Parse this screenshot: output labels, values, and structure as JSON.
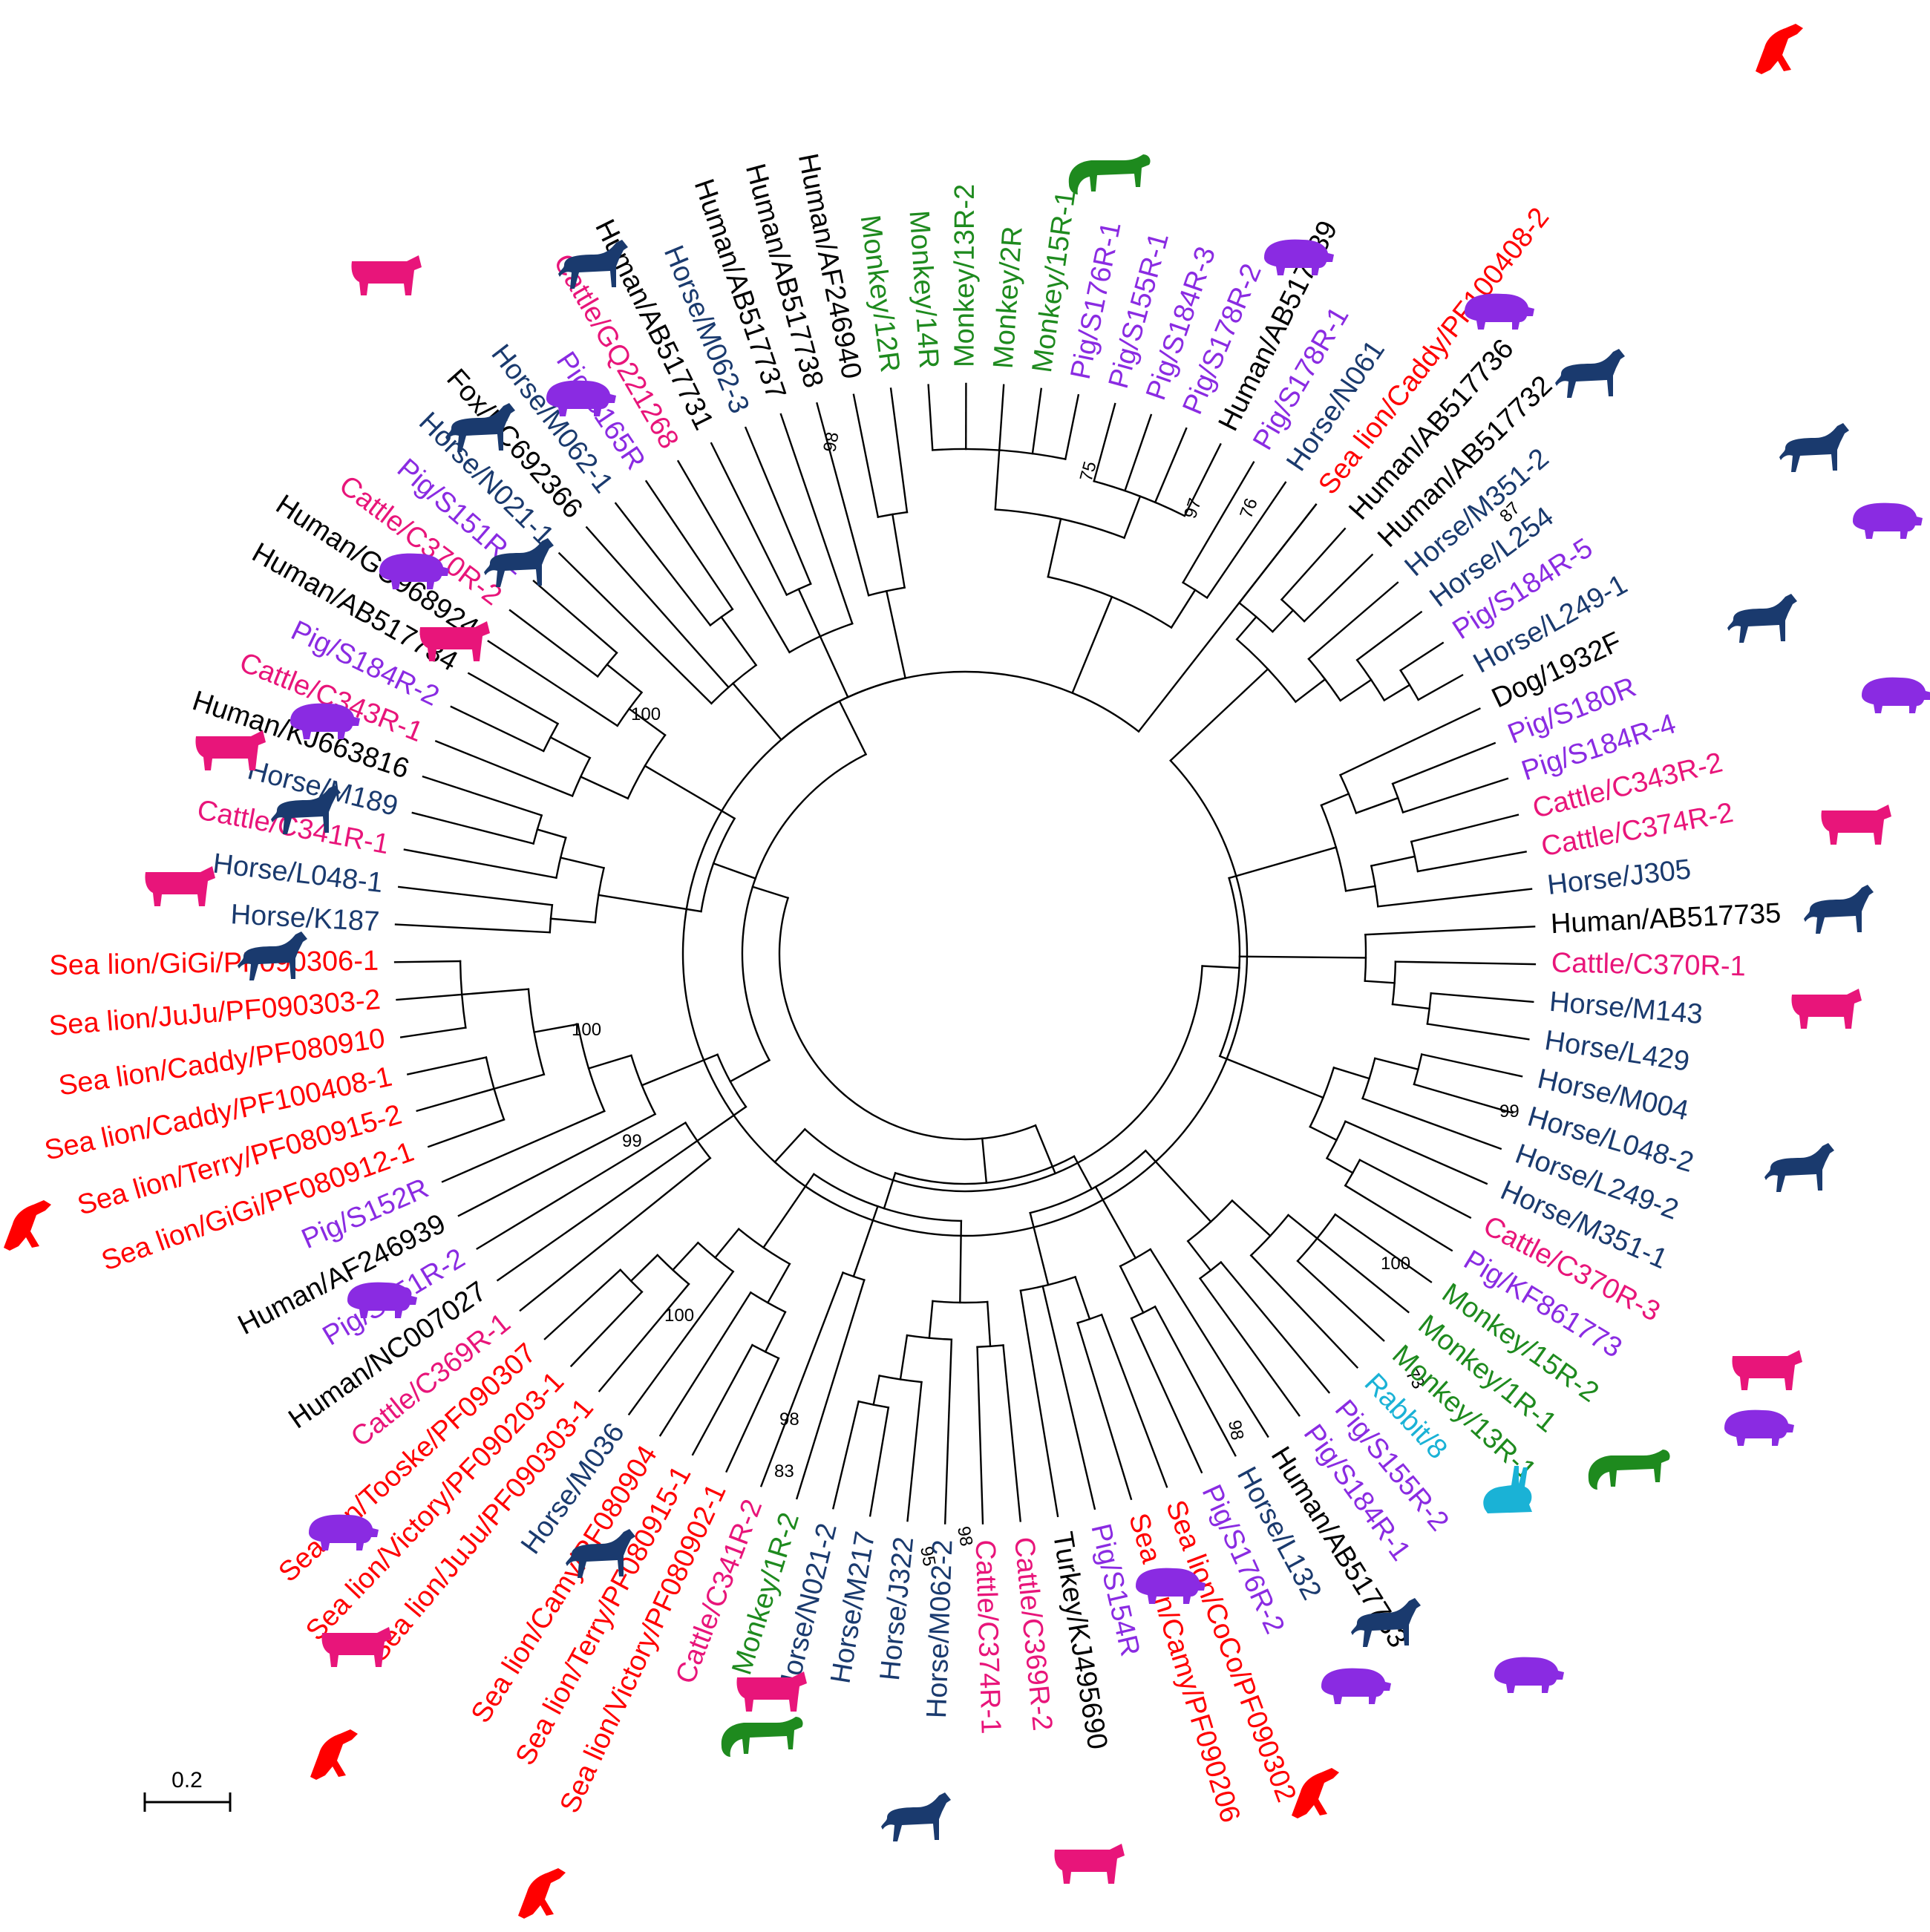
{
  "palette": {
    "Human": "#000000",
    "Fox": "#000000",
    "Dog": "#000000",
    "Turkey": "#000000",
    "Horse": "#1a3a6e",
    "Pig": "#8a2be2",
    "Cattle": "#e8157a",
    "Monkey": "#1e8a1e",
    "Sea lion": "#ff0000",
    "Rabbit": "#1ab2d6"
  },
  "icons": [
    {
      "name": "sea-lion-icon",
      "host": "Sea lion"
    },
    {
      "name": "monkey-icon",
      "host": "Monkey"
    },
    {
      "name": "pig-icon",
      "host": "Pig"
    },
    {
      "name": "horse-icon",
      "host": "Horse"
    },
    {
      "name": "cattle-icon",
      "host": "Cattle"
    },
    {
      "name": "rabbit-icon",
      "host": "Rabbit"
    }
  ],
  "scale_bar": {
    "label": "0.2"
  },
  "bootstrap": [
    "98",
    "75",
    "97",
    "76",
    "87",
    "99",
    "100",
    "100",
    "99",
    "100",
    "73",
    "98",
    "98",
    "83",
    "95",
    "98",
    "100"
  ],
  "leaves": [
    {
      "label": "Sea lion/Caddy/PF100408-2",
      "host": "Sea lion"
    },
    {
      "label": "Human/AB517736",
      "host": "Human"
    },
    {
      "label": "Human/AB517732",
      "host": "Human"
    },
    {
      "label": "Horse/M351-2",
      "host": "Horse"
    },
    {
      "label": "Horse/L254",
      "host": "Horse"
    },
    {
      "label": "Pig/S184R-5",
      "host": "Pig"
    },
    {
      "label": "Horse/L249-1",
      "host": "Horse"
    },
    {
      "label": "Dog/1932F",
      "host": "Dog"
    },
    {
      "label": "Pig/S180R",
      "host": "Pig"
    },
    {
      "label": "Pig/S184R-4",
      "host": "Pig"
    },
    {
      "label": "Cattle/C343R-2",
      "host": "Cattle"
    },
    {
      "label": "Cattle/C374R-2",
      "host": "Cattle"
    },
    {
      "label": "Horse/J305",
      "host": "Horse"
    },
    {
      "label": "Human/AB517735",
      "host": "Human"
    },
    {
      "label": "Cattle/C370R-1",
      "host": "Cattle"
    },
    {
      "label": "Horse/M143",
      "host": "Horse"
    },
    {
      "label": "Horse/L429",
      "host": "Horse"
    },
    {
      "label": "Horse/M004",
      "host": "Horse"
    },
    {
      "label": "Horse/L048-2",
      "host": "Horse"
    },
    {
      "label": "Horse/L249-2",
      "host": "Horse"
    },
    {
      "label": "Horse/M351-1",
      "host": "Horse"
    },
    {
      "label": "Cattle/C370R-3",
      "host": "Cattle"
    },
    {
      "label": "Pig/KF861773",
      "host": "Pig"
    },
    {
      "label": "Monkey/15R-2",
      "host": "Monkey"
    },
    {
      "label": "Monkey/1R-1",
      "host": "Monkey"
    },
    {
      "label": "Monkey/13R-1",
      "host": "Monkey"
    },
    {
      "label": "Rabbit/8",
      "host": "Rabbit"
    },
    {
      "label": "Pig/S155R-2",
      "host": "Pig"
    },
    {
      "label": "Pig/S184R-1",
      "host": "Pig"
    },
    {
      "label": "Human/AB517733",
      "host": "Human"
    },
    {
      "label": "Horse/L132",
      "host": "Horse"
    },
    {
      "label": "Pig/S176R-2",
      "host": "Pig"
    },
    {
      "label": "Sea lion/CoCo/PF090302",
      "host": "Sea lion"
    },
    {
      "label": "Sea lion/Camy/PF090206",
      "host": "Sea lion"
    },
    {
      "label": "Pig/S154R",
      "host": "Pig"
    },
    {
      "label": "Turkey/KJ495690",
      "host": "Turkey"
    },
    {
      "label": "Cattle/C369R-2",
      "host": "Cattle"
    },
    {
      "label": "Cattle/C374R-1",
      "host": "Cattle"
    },
    {
      "label": "Horse/M062-2",
      "host": "Horse"
    },
    {
      "label": "Horse/J322",
      "host": "Horse"
    },
    {
      "label": "Horse/M217",
      "host": "Horse"
    },
    {
      "label": "Horse/N021-2",
      "host": "Horse"
    },
    {
      "label": "Monkey/1R-2",
      "host": "Monkey"
    },
    {
      "label": "Cattle/C341R-2",
      "host": "Cattle"
    },
    {
      "label": "Sea lion/Victory/PF080902-1",
      "host": "Sea lion"
    },
    {
      "label": "Sea lion/Terry/PF080915-1",
      "host": "Sea lion"
    },
    {
      "label": "Sea lion/Camy/PF080904",
      "host": "Sea lion"
    },
    {
      "label": "Horse/M036",
      "host": "Horse"
    },
    {
      "label": "Sea lion/JuJu/PF090303-1",
      "host": "Sea lion"
    },
    {
      "label": "Sea lion/Victory/PF090203-1",
      "host": "Sea lion"
    },
    {
      "label": "Sea lion/Tooske/PF090307",
      "host": "Sea lion"
    },
    {
      "label": "Cattle/C369R-1",
      "host": "Cattle"
    },
    {
      "label": "Human/NC007027",
      "host": "Human"
    },
    {
      "label": "Pig/S151R-2",
      "host": "Pig"
    },
    {
      "label": "Human/AF246939",
      "host": "Human"
    },
    {
      "label": "Pig/S152R",
      "host": "Pig"
    },
    {
      "label": "Sea lion/GiGi/PF080912-1",
      "host": "Sea lion"
    },
    {
      "label": "Sea lion/Terry/PF080915-2",
      "host": "Sea lion"
    },
    {
      "label": "Sea lion/Caddy/PF100408-1",
      "host": "Sea lion"
    },
    {
      "label": "Sea lion/Caddy/PF080910",
      "host": "Sea lion"
    },
    {
      "label": "Sea lion/JuJu/PF090303-2",
      "host": "Sea lion"
    },
    {
      "label": "Sea lion/GiGi/PF090306-1",
      "host": "Sea lion"
    },
    {
      "label": "Horse/K187",
      "host": "Horse"
    },
    {
      "label": "Horse/L048-1",
      "host": "Horse"
    },
    {
      "label": "Cattle/C341R-1",
      "host": "Cattle"
    },
    {
      "label": "Horse/M189",
      "host": "Horse"
    },
    {
      "label": "Human/KJ663816",
      "host": "Human"
    },
    {
      "label": "Cattle/C343R-1",
      "host": "Cattle"
    },
    {
      "label": "Pig/S184R-2",
      "host": "Pig"
    },
    {
      "label": "Human/AB517734",
      "host": "Human"
    },
    {
      "label": "Human/GU968924",
      "host": "Human"
    },
    {
      "label": "Cattle/C370R-2",
      "host": "Cattle"
    },
    {
      "label": "Pig/S151R-1",
      "host": "Pig"
    },
    {
      "label": "Horse/N021-1",
      "host": "Horse"
    },
    {
      "label": "Fox/KC692366",
      "host": "Fox"
    },
    {
      "label": "Horse/M062-1",
      "host": "Horse"
    },
    {
      "label": "Pig/S165R",
      "host": "Pig"
    },
    {
      "label": "Cattle/GQ221268",
      "host": "Cattle"
    },
    {
      "label": "Human/AB517731",
      "host": "Human"
    },
    {
      "label": "Horse/M062-3",
      "host": "Horse"
    },
    {
      "label": "Human/AB517737",
      "host": "Human"
    },
    {
      "label": "Human/AB517738",
      "host": "Human"
    },
    {
      "label": "Human/AF246940",
      "host": "Human"
    },
    {
      "label": "Monkey/12R",
      "host": "Monkey"
    },
    {
      "label": "Monkey/14R",
      "host": "Monkey"
    },
    {
      "label": "Monkey/13R-2",
      "host": "Monkey"
    },
    {
      "label": "Monkey/2R",
      "host": "Monkey"
    },
    {
      "label": "Monkey/15R-1",
      "host": "Monkey"
    },
    {
      "label": "Pig/S176R-1",
      "host": "Pig"
    },
    {
      "label": "Pig/S155R-1",
      "host": "Pig"
    },
    {
      "label": "Pig/S184R-3",
      "host": "Pig"
    },
    {
      "label": "Pig/S178R-2",
      "host": "Pig"
    },
    {
      "label": "Human/AB517739",
      "host": "Human"
    },
    {
      "label": "Pig/S178R-1",
      "host": "Pig"
    },
    {
      "label": "Horse/N061",
      "host": "Horse"
    }
  ]
}
